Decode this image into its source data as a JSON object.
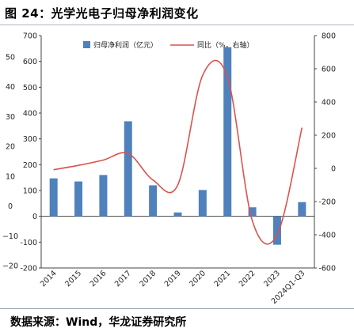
{
  "figure": {
    "title": "图 24：光学光电子归母净利润变化",
    "source": "数据来源：Wind，华龙证券研究所"
  },
  "chart_data": {
    "type": "bar",
    "categories": [
      "2014",
      "2015",
      "2016",
      "2017",
      "2018",
      "2019",
      "2020",
      "2021",
      "2022",
      "2023",
      "2024Q1-Q3"
    ],
    "series": [
      {
        "name": "归母净利润（亿元）",
        "type": "bar",
        "axis": "left",
        "values": [
          147,
          135,
          160,
          368,
          120,
          15,
          102,
          655,
          35,
          -110,
          55
        ],
        "color": "#4f81bd"
      },
      {
        "name": "同比（%，右轴）",
        "type": "line",
        "axis": "right",
        "values": [
          -8,
          18,
          50,
          90,
          -70,
          -100,
          560,
          550,
          -315,
          -400,
          245
        ],
        "color": "#d9534f"
      }
    ],
    "left_axis": {
      "ticks": [
        700,
        600,
        500,
        400,
        300,
        200,
        100,
        0,
        -100,
        -200
      ],
      "range": [
        -200,
        700
      ]
    },
    "right_axis": {
      "ticks": [
        800,
        600,
        400,
        200,
        0,
        -200,
        -400,
        -600
      ],
      "range": [
        -600,
        800
      ]
    },
    "outer_axis": {
      "ticks": [
        "50",
        "40",
        "30",
        "20",
        "10",
        "0",
        "−10",
        "−20"
      ]
    },
    "legend_position": "top"
  }
}
